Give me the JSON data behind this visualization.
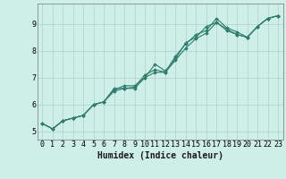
{
  "xlabel": "Humidex (Indice chaleur)",
  "background_color": "#ceeee8",
  "line_color": "#2e7d6e",
  "grid_color": "#b0d0ca",
  "x_data": [
    0,
    1,
    2,
    3,
    4,
    5,
    6,
    7,
    8,
    9,
    10,
    11,
    12,
    13,
    14,
    15,
    16,
    17,
    18,
    19,
    20,
    21,
    22,
    23
  ],
  "series": [
    [
      5.3,
      5.1,
      5.4,
      5.5,
      5.6,
      6.0,
      6.1,
      6.6,
      6.6,
      6.65,
      7.1,
      7.3,
      7.2,
      7.8,
      8.25,
      8.6,
      8.75,
      9.2,
      8.85,
      8.7,
      8.5,
      8.9,
      9.2,
      9.3
    ],
    [
      5.3,
      5.1,
      5.4,
      5.5,
      5.6,
      6.0,
      6.1,
      6.55,
      6.7,
      6.7,
      7.0,
      7.5,
      7.25,
      7.7,
      8.3,
      8.5,
      8.9,
      9.05,
      8.8,
      8.6,
      8.5,
      8.9,
      9.2,
      9.3
    ],
    [
      5.3,
      5.1,
      5.4,
      5.5,
      5.6,
      6.0,
      6.1,
      6.5,
      6.6,
      6.6,
      7.0,
      7.2,
      7.2,
      7.65,
      8.1,
      8.45,
      8.65,
      9.05,
      8.75,
      8.6,
      8.5,
      8.9,
      9.2,
      9.3
    ]
  ],
  "xlim": [
    -0.5,
    23.5
  ],
  "ylim": [
    4.7,
    9.75
  ],
  "yticks": [
    5,
    6,
    7,
    8,
    9
  ],
  "xticks": [
    0,
    1,
    2,
    3,
    4,
    5,
    6,
    7,
    8,
    9,
    10,
    11,
    12,
    13,
    14,
    15,
    16,
    17,
    18,
    19,
    20,
    21,
    22,
    23
  ],
  "marker": "D",
  "marker_size": 1.8,
  "line_width": 0.8,
  "xlabel_fontsize": 7,
  "tick_fontsize": 6
}
